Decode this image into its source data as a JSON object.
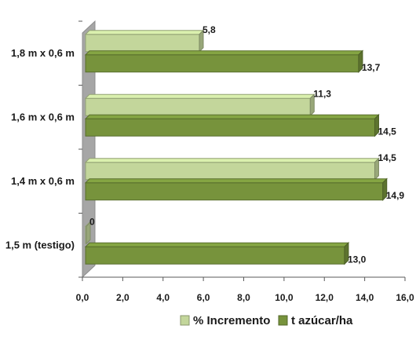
{
  "chart_data": {
    "type": "bar",
    "orientation": "horizontal",
    "categories": [
      "1,5 m (testigo)",
      "1,4 m x 0,6 m",
      "1,6 m x 0,6 m",
      "1,8 m x 0,6 m"
    ],
    "series": [
      {
        "name": "% Incremento",
        "values": [
          0,
          14.5,
          11.3,
          5.8
        ],
        "labels": [
          "0",
          "14,5",
          "11,3",
          "5,8"
        ],
        "color": "#c3d69b"
      },
      {
        "name": "t azúcar/ha",
        "values": [
          13.0,
          14.9,
          14.5,
          13.7
        ],
        "labels": [
          "13,0",
          "14,9",
          "14,5",
          "13,7"
        ],
        "color": "#77933c"
      }
    ],
    "xlim": [
      0,
      16
    ],
    "xticks": [
      "0,0",
      "2,0",
      "4,0",
      "6,0",
      "8,0",
      "10,0",
      "12,0",
      "14,0",
      "16,0"
    ],
    "grid": false,
    "legend_position": "bottom",
    "wall_color": "#a6a6a6"
  }
}
